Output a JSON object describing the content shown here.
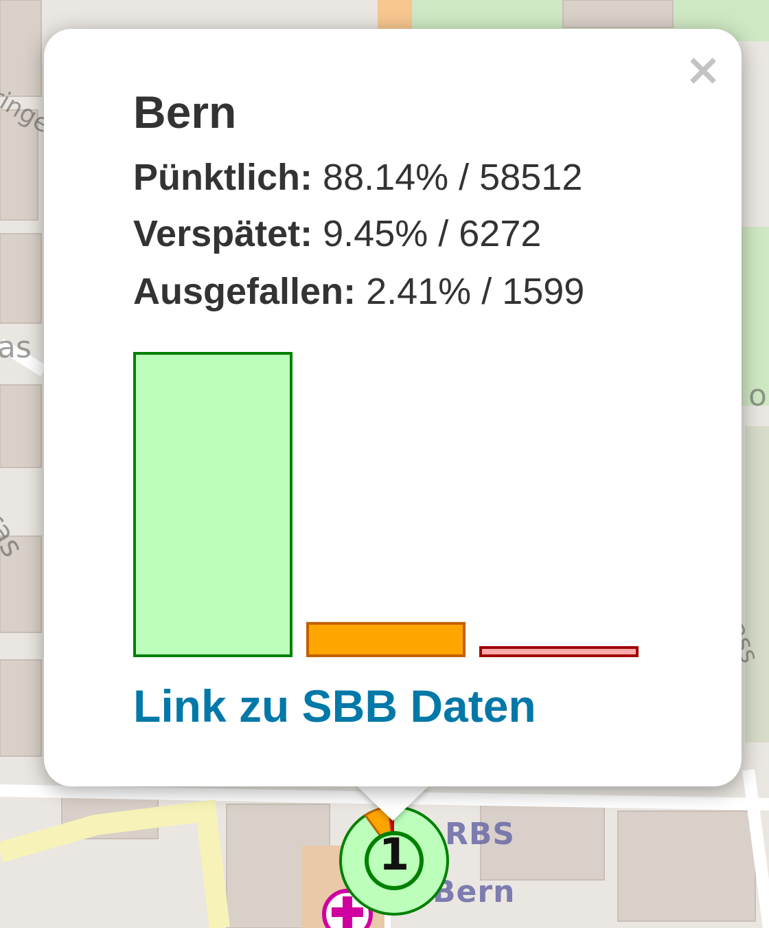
{
  "popup": {
    "title": "Bern",
    "close_symbol": "×",
    "stats": [
      {
        "label": "Pünktlich:",
        "value": "88.14% / 58512"
      },
      {
        "label": "Verspätet:",
        "value": "9.45% / 6272"
      },
      {
        "label": "Ausgefallen:",
        "value": "2.41% / 1599"
      }
    ],
    "link_label": "Link zu SBB Daten"
  },
  "chart_data": {
    "type": "bar",
    "categories": [
      "Pünktlich",
      "Verspätet",
      "Ausgefallen"
    ],
    "values": [
      88.14,
      9.45,
      2.41
    ],
    "colors": {
      "fills": [
        "#bbffbb",
        "#ffa500",
        "#ffaaaa"
      ],
      "strokes": [
        "#008000",
        "#c06000",
        "#a00000"
      ]
    }
  },
  "map": {
    "marker_count": "1",
    "labels": [
      "RBS",
      "Bern"
    ],
    "street_fragments": [
      "as",
      "stras",
      "ringe",
      "or",
      "ass"
    ],
    "marker_colors": {
      "ring": "#bbffbb",
      "ring_stroke": "#008000",
      "delayed": "#ffa500",
      "cancelled": "#cc0000"
    }
  },
  "icons": {
    "close": "close-icon",
    "medical": "medical-cross-icon"
  },
  "colors": {
    "link": "#0078a8",
    "text": "#333333",
    "map_bg": "#eae6e1"
  }
}
